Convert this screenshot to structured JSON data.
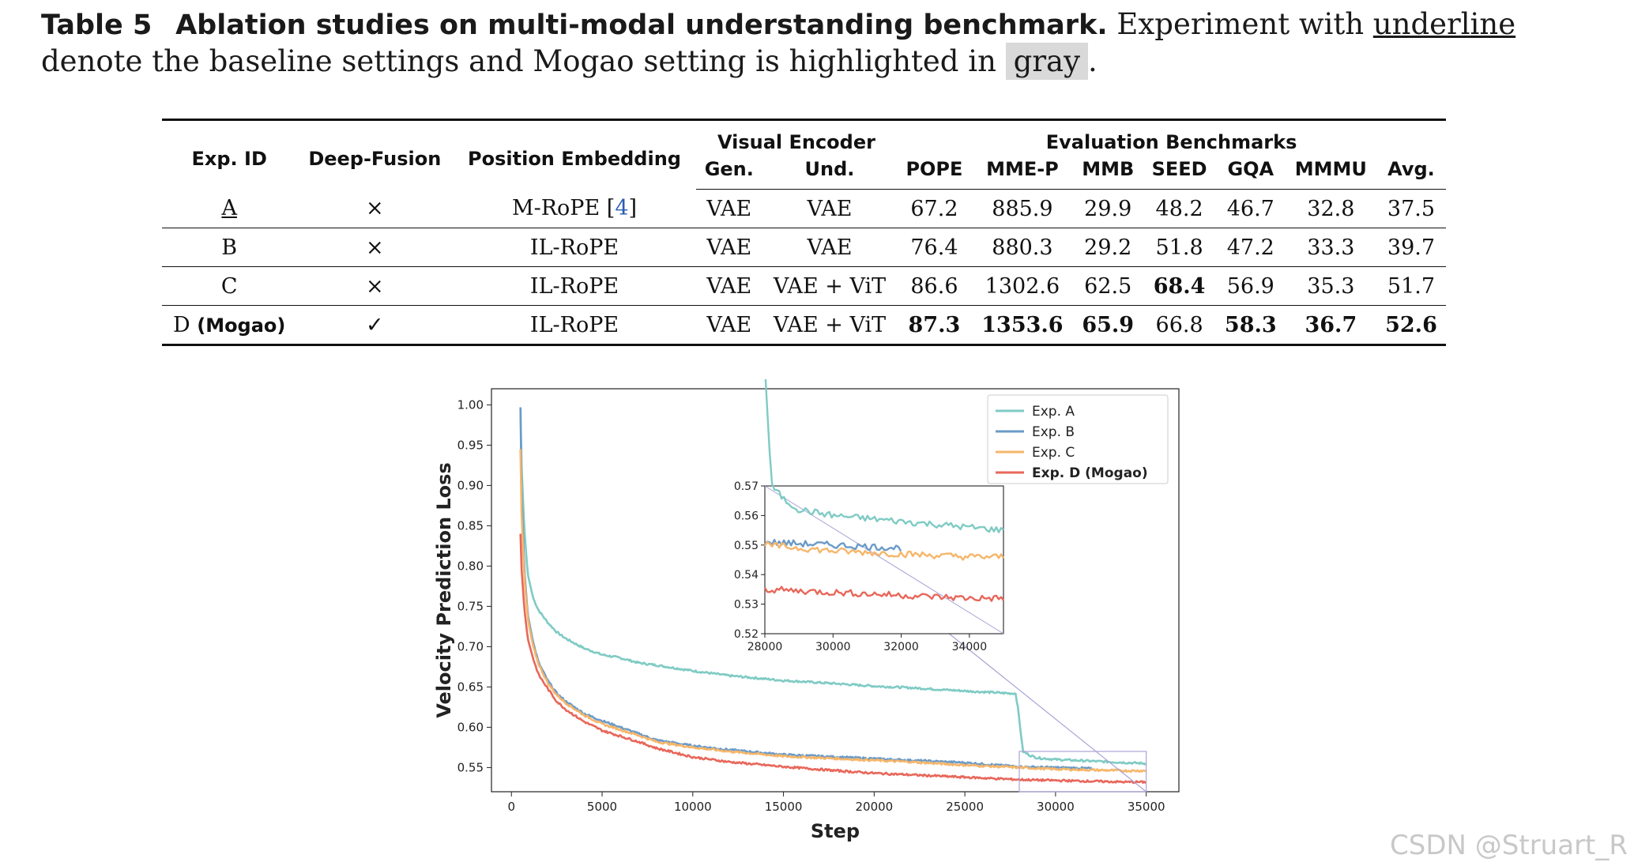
{
  "caption": {
    "label": "Table 5",
    "title": "Ablation studies on multi-modal understanding benchmark.",
    "text1": " Experiment with ",
    "underline_word": "underline",
    "text2": " denote the baseline settings and Mogao setting is highlighted in ",
    "gray_word": "gray",
    "text3": "."
  },
  "table": {
    "headers": {
      "exp_id": "Exp. ID",
      "deep_fusion": "Deep-Fusion",
      "position_embedding": "Position Embedding",
      "visual_encoder": "Visual Encoder",
      "gen": "Gen.",
      "und": "Und.",
      "evaluation": "Evaluation Benchmarks",
      "pope": "POPE",
      "mmep": "MME-P",
      "mmb": "MMB",
      "seed": "SEED",
      "gqa": "GQA",
      "mmmu": "MMMU",
      "avg": "Avg."
    },
    "rows": [
      {
        "id": "A",
        "id_suffix": "",
        "fusion": "×",
        "pe": "M-RoPE [",
        "pe_cite": "4",
        "pe_close": "]",
        "gen": "VAE",
        "und": "VAE",
        "pope": "67.2",
        "mmep": "885.9",
        "mmb": "29.9",
        "seed": "48.2",
        "gqa": "46.7",
        "mmmu": "32.8",
        "avg": "37.5"
      },
      {
        "id": "B",
        "id_suffix": "",
        "fusion": "×",
        "pe": "IL-RoPE",
        "pe_cite": "",
        "pe_close": "",
        "gen": "VAE",
        "und": "VAE",
        "pope": "76.4",
        "mmep": "880.3",
        "mmb": "29.2",
        "seed": "51.8",
        "gqa": "47.2",
        "mmmu": "33.3",
        "avg": "39.7"
      },
      {
        "id": "C",
        "id_suffix": "",
        "fusion": "×",
        "pe": "IL-RoPE",
        "pe_cite": "",
        "pe_close": "",
        "gen": "VAE",
        "und": "VAE + ViT",
        "pope": "86.6",
        "mmep": "1302.6",
        "mmb": "62.5",
        "seed": "68.4",
        "gqa": "56.9",
        "mmmu": "35.3",
        "avg": "51.7"
      },
      {
        "id": "D",
        "id_suffix": "(Mogao)",
        "fusion": "✓",
        "pe": "IL-RoPE",
        "pe_cite": "",
        "pe_close": "",
        "gen": "VAE",
        "und": "VAE + ViT",
        "pope": "87.3",
        "mmep": "1353.6",
        "mmb": "65.9",
        "seed": "66.8",
        "gqa": "58.3",
        "mmmu": "36.7",
        "avg": "52.6"
      }
    ]
  },
  "chart_data": {
    "type": "line",
    "title": "",
    "xlabel": "Step",
    "ylabel": "Velocity Prediction Loss",
    "xlim": [
      -1100,
      36800
    ],
    "ylim": [
      0.52,
      1.02
    ],
    "xticks": [
      "0",
      "5000",
      "10000",
      "15000",
      "20000",
      "25000",
      "30000",
      "35000"
    ],
    "yticks": [
      "0.55",
      "0.60",
      "0.65",
      "0.70",
      "0.75",
      "0.80",
      "0.85",
      "0.90",
      "0.95",
      "1.00"
    ],
    "legend_position": "top-right",
    "series": [
      {
        "name": "Exp. A",
        "color": "#7fcbc4",
        "x": [
          500,
          550,
          700,
          900,
          1200,
          1500,
          2000,
          2500,
          3000,
          4000,
          5000,
          6000,
          7000,
          8000,
          10000,
          12000,
          15000,
          18000,
          20000,
          22000,
          25000,
          27500,
          27800,
          27950,
          28200,
          28600,
          29000,
          30000,
          32000,
          34000,
          35000
        ],
        "y": [
          0.997,
          0.93,
          0.85,
          0.79,
          0.76,
          0.745,
          0.73,
          0.718,
          0.71,
          0.698,
          0.69,
          0.686,
          0.68,
          0.677,
          0.67,
          0.664,
          0.658,
          0.654,
          0.651,
          0.649,
          0.645,
          0.642,
          0.642,
          0.62,
          0.57,
          0.565,
          0.562,
          0.56,
          0.558,
          0.556,
          0.555
        ]
      },
      {
        "name": "Exp. B",
        "color": "#6b9bc8",
        "x": [
          500,
          550,
          700,
          900,
          1200,
          1500,
          2000,
          2500,
          3000,
          4000,
          5000,
          6000,
          7000,
          8000,
          10000,
          12000,
          15000,
          18000,
          20000,
          22000,
          25000,
          28000,
          30000,
          32000
        ],
        "y": [
          0.997,
          0.9,
          0.8,
          0.74,
          0.705,
          0.68,
          0.658,
          0.642,
          0.632,
          0.617,
          0.608,
          0.6,
          0.592,
          0.584,
          0.577,
          0.572,
          0.566,
          0.563,
          0.561,
          0.559,
          0.556,
          0.551,
          0.55,
          0.549
        ]
      },
      {
        "name": "Exp. C",
        "color": "#f6b66a",
        "x": [
          500,
          550,
          700,
          900,
          1200,
          1500,
          2000,
          2500,
          3000,
          4000,
          5000,
          6000,
          7000,
          8000,
          10000,
          12000,
          15000,
          18000,
          20000,
          22000,
          25000,
          28000,
          30000,
          32000,
          34000,
          35000
        ],
        "y": [
          0.945,
          0.87,
          0.79,
          0.735,
          0.7,
          0.678,
          0.655,
          0.64,
          0.63,
          0.615,
          0.604,
          0.597,
          0.59,
          0.582,
          0.575,
          0.57,
          0.564,
          0.561,
          0.559,
          0.557,
          0.553,
          0.55,
          0.548,
          0.547,
          0.546,
          0.546
        ]
      },
      {
        "name": "Exp. D (Mogao)",
        "color": "#e8675a",
        "x": [
          500,
          550,
          700,
          900,
          1200,
          1500,
          2000,
          2500,
          3000,
          4000,
          5000,
          6000,
          7000,
          8000,
          10000,
          12000,
          15000,
          18000,
          20000,
          22000,
          25000,
          28000,
          30000,
          32000,
          34000,
          35000
        ],
        "y": [
          0.84,
          0.8,
          0.75,
          0.71,
          0.685,
          0.665,
          0.648,
          0.632,
          0.622,
          0.607,
          0.596,
          0.589,
          0.582,
          0.574,
          0.563,
          0.557,
          0.551,
          0.546,
          0.543,
          0.541,
          0.538,
          0.535,
          0.534,
          0.533,
          0.532,
          0.532
        ]
      }
    ],
    "inset": {
      "xlim": [
        28000,
        35000
      ],
      "ylim": [
        0.52,
        0.57
      ],
      "xticks": [
        "28000",
        "30000",
        "32000",
        "34000"
      ],
      "yticks": [
        "0.52",
        "0.53",
        "0.54",
        "0.55",
        "0.56",
        "0.57"
      ],
      "zoom_box_x": [
        28000,
        35000
      ],
      "zoom_box_y": [
        0.52,
        0.57
      ],
      "box_color": "#a8a3d6"
    }
  },
  "watermark": "CSDN @Struart_R"
}
